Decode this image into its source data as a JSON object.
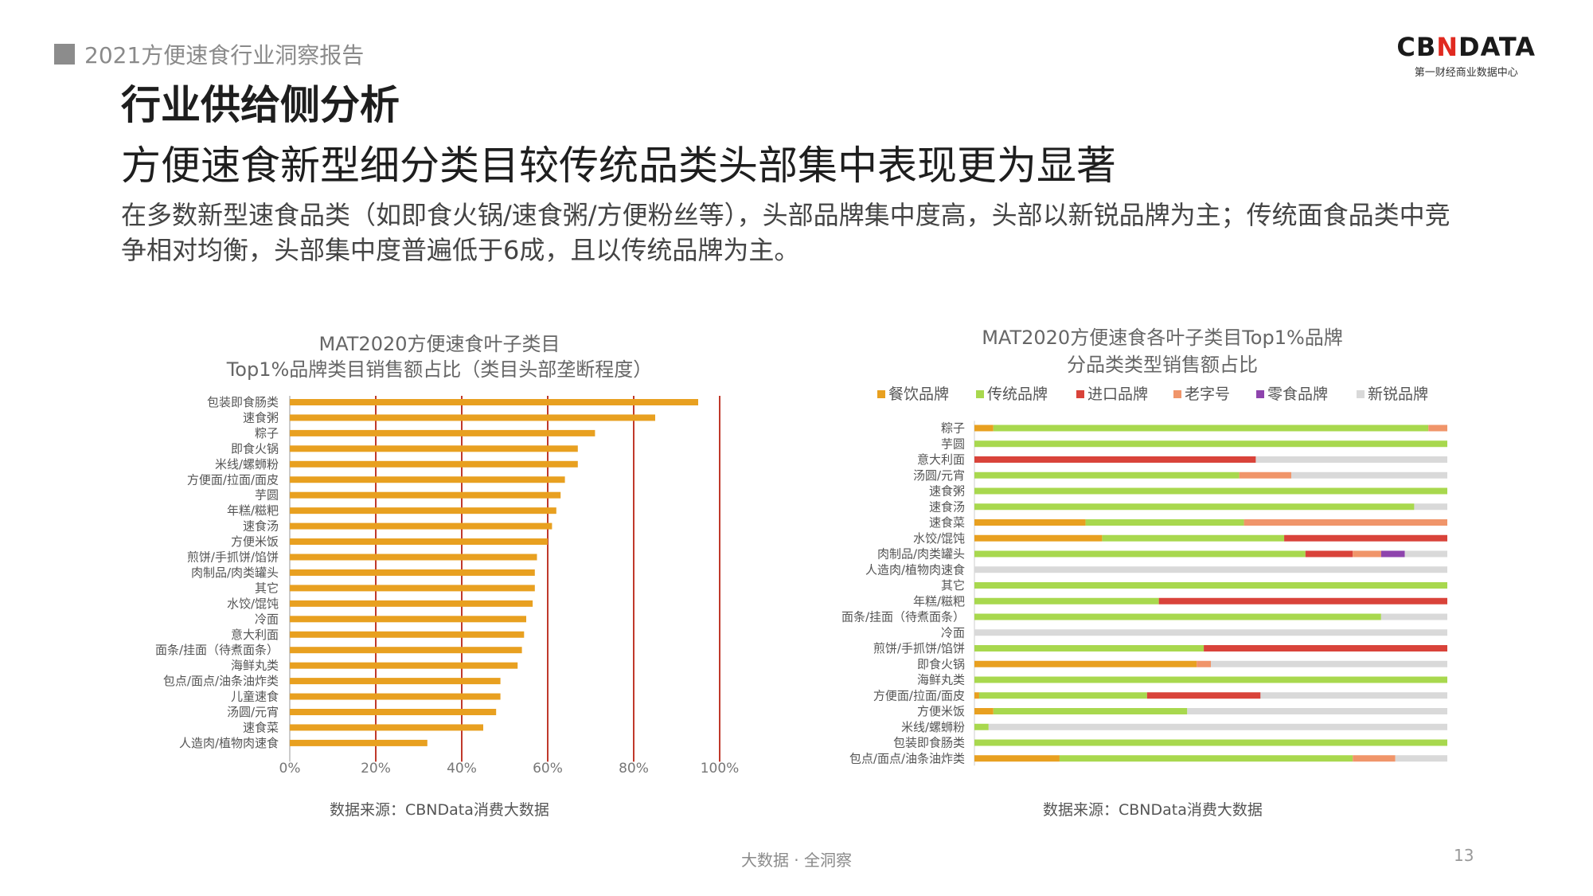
{
  "header": {
    "report_title": "2021方便速食行业洞察报告",
    "page_number": "13"
  },
  "logo": {
    "part1": "CB",
    "part2": "N",
    "part3": "DATA",
    "subtitle": "第一财经商业数据中心"
  },
  "heading": {
    "line1": "行业供给侧分析",
    "line2": "方便速食新型细分类目较传统品类头部集中表现更为显著"
  },
  "description": "在多数新型速食品类（如即食火锅/速食粥/方便粉丝等），头部品牌集中度高，头部以新锐品牌为主；传统面食品类中竞争相对均衡，头部集中度普遍低于6成，且以传统品牌为主。",
  "footer": {
    "slogan": "大数据 · 全洞察"
  },
  "chart_data": [
    {
      "type": "bar",
      "orientation": "horizontal",
      "title": "MAT2020方便速食叶子类目",
      "subtitle": "Top1%品牌类目销售额占比（类目头部垄断程度）",
      "categories": [
        "包装即食肠类",
        "速食粥",
        "粽子",
        "即食火锅",
        "米线/螺蛳粉",
        "方便面/拉面/面皮",
        "芋圆",
        "年糕/糍粑",
        "速食汤",
        "方便米饭",
        "煎饼/手抓饼/馅饼",
        "肉制品/肉类罐头",
        "其它",
        "水饺/馄饨",
        "冷面",
        "意大利面",
        "面条/挂面（待煮面条）",
        "海鲜丸类",
        "包点/面点/油条油炸类",
        "儿童速食",
        "汤圆/元宵",
        "速食菜",
        "人造肉/植物肉速食"
      ],
      "values": [
        0.95,
        0.85,
        0.71,
        0.67,
        0.67,
        0.64,
        0.63,
        0.62,
        0.61,
        0.6,
        0.575,
        0.57,
        0.57,
        0.565,
        0.55,
        0.545,
        0.54,
        0.53,
        0.49,
        0.49,
        0.48,
        0.45,
        0.32
      ],
      "xlim": [
        0,
        1
      ],
      "ticks": [
        "0%",
        "20%",
        "40%",
        "60%",
        "80%",
        "100%"
      ],
      "bar_color": "#E8A020",
      "gridline_color": "#C0392B",
      "source": "数据来源：CBNData消费大数据"
    },
    {
      "type": "bar",
      "orientation": "horizontal",
      "stacked": true,
      "title": "MAT2020方便速食各叶子类目Top1%品牌",
      "subtitle": "分品类类型销售额占比",
      "legend_position": "top",
      "xlim": [
        0,
        1
      ],
      "categories": [
        "粽子",
        "芋圆",
        "意大利面",
        "汤圆/元宵",
        "速食粥",
        "速食汤",
        "速食菜",
        "水饺/馄饨",
        "肉制品/肉类罐头",
        "人造肉/植物肉速食",
        "其它",
        "年糕/糍粑",
        "面条/挂面（待煮面条）",
        "冷面",
        "煎饼/手抓饼/馅饼",
        "即食火锅",
        "海鲜丸类",
        "方便面/拉面/面皮",
        "方便米饭",
        "米线/螺蛳粉",
        "包装即食肠类",
        "包点/面点/油条油炸类"
      ],
      "series": [
        {
          "name": "餐饮品牌",
          "color": "#E8A020",
          "values": [
            0.04,
            0,
            0,
            0,
            0,
            0,
            0.235,
            0.27,
            0,
            0,
            0,
            0,
            0,
            0,
            0,
            0.47,
            0,
            0.01,
            0.04,
            0,
            0,
            0.18
          ]
        },
        {
          "name": "传统品牌",
          "color": "#A8D84E",
          "values": [
            0.92,
            1.0,
            0,
            0.56,
            1.0,
            0.93,
            0.335,
            0.385,
            0.7,
            0,
            1.0,
            0.39,
            0.86,
            0,
            0.485,
            0,
            1.0,
            0.355,
            0.41,
            0.03,
            1.0,
            0.62
          ]
        },
        {
          "name": "进口品牌",
          "color": "#D9433A",
          "values": [
            0,
            0,
            0.595,
            0,
            0,
            0,
            0,
            0.345,
            0.1,
            0,
            0,
            0.61,
            0,
            0,
            0.515,
            0,
            0,
            0.24,
            0,
            0,
            0,
            0
          ]
        },
        {
          "name": "老字号",
          "color": "#F0956A",
          "values": [
            0.04,
            0,
            0,
            0.11,
            0,
            0,
            0.43,
            0,
            0.06,
            0,
            0,
            0,
            0,
            0,
            0,
            0.03,
            0,
            0,
            0,
            0,
            0,
            0.09
          ]
        },
        {
          "name": "零食品牌",
          "color": "#8E44AD",
          "values": [
            0,
            0,
            0,
            0,
            0,
            0,
            0,
            0,
            0.05,
            0,
            0,
            0,
            0,
            0,
            0,
            0,
            0,
            0,
            0,
            0,
            0,
            0
          ]
        },
        {
          "name": "新锐品牌",
          "color": "#D9D9D9",
          "values": [
            0,
            0,
            0.405,
            0.33,
            0,
            0.07,
            0,
            0,
            0.09,
            1.0,
            0,
            0,
            0.14,
            1.0,
            0,
            0.5,
            0,
            0.395,
            0.55,
            0.97,
            0,
            0.11
          ]
        }
      ],
      "source": "数据来源：CBNData消费大数据"
    }
  ]
}
